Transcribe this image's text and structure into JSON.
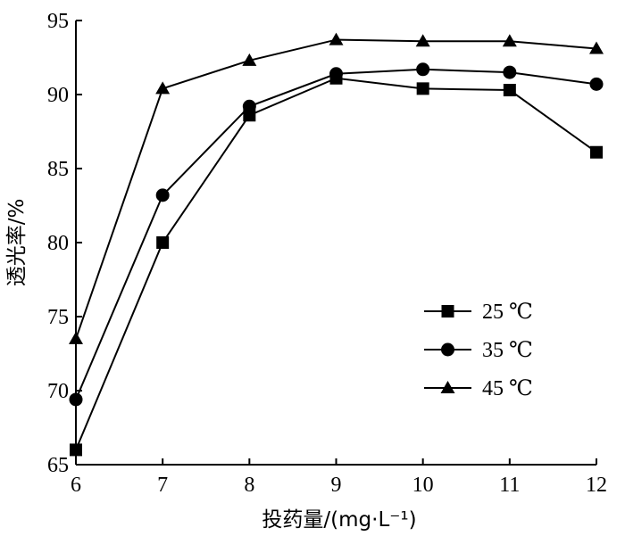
{
  "chart_data": {
    "type": "line",
    "title": "",
    "xlabel": "投药量/(mg·L⁻¹)",
    "ylabel": "透光率/%",
    "x": [
      6,
      7,
      8,
      9,
      10,
      11,
      12
    ],
    "xlim": [
      6,
      12
    ],
    "ylim": [
      65,
      95
    ],
    "xticks": [
      "6",
      "7",
      "8",
      "9",
      "10",
      "11",
      "12"
    ],
    "yticks": [
      "65",
      "70",
      "75",
      "80",
      "85",
      "90",
      "95"
    ],
    "grid": false,
    "legend_position": "bottom-right",
    "series": [
      {
        "name": "25 ℃",
        "marker": "square",
        "values": [
          66.0,
          80.0,
          88.6,
          91.1,
          90.4,
          90.3,
          86.1
        ]
      },
      {
        "name": "35 ℃",
        "marker": "circle",
        "values": [
          69.4,
          83.2,
          89.2,
          91.4,
          91.7,
          91.5,
          90.7
        ]
      },
      {
        "name": "45 ℃",
        "marker": "triangle",
        "values": [
          73.5,
          90.4,
          92.3,
          93.7,
          93.6,
          93.6,
          93.1
        ]
      }
    ],
    "colors": {
      "line": "#000000",
      "marker": "#000000"
    }
  }
}
